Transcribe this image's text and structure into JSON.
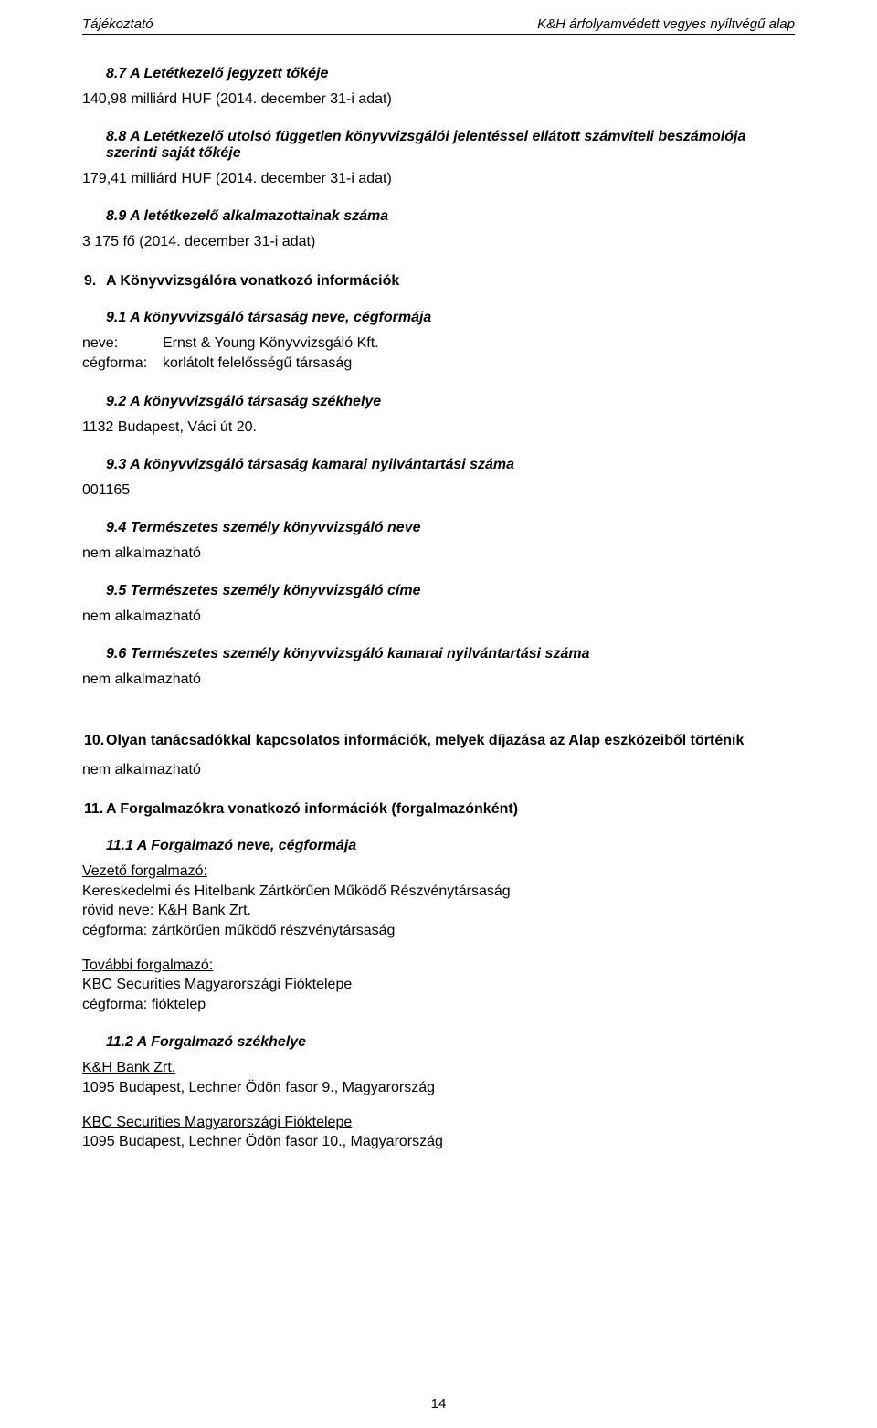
{
  "header": {
    "left": "Tájékoztató",
    "right": "K&H árfolyamvédett vegyes nyíltvégű alap"
  },
  "s8_7": {
    "title": "8.7 A Letétkezelő jegyzett tőkéje",
    "value": "140,98 milliárd HUF (2014. december 31-i adat)"
  },
  "s8_8": {
    "title": "8.8 A Letétkezelő utolsó független könyvvizsgálói jelentéssel ellátott számviteli beszámolója szerinti saját tőkéje",
    "value": "179,41 milliárd HUF (2014. december 31-i adat)"
  },
  "s8_9": {
    "title": "8.9 A letétkezelő alkalmazottainak száma",
    "value": "3 175 fő (2014. december 31-i adat)"
  },
  "s9": {
    "num": "9.",
    "title": "A Könyvvizsgálóra vonatkozó információk"
  },
  "s9_1": {
    "title": "9.1 A könyvvizsgáló társaság neve, cégformája",
    "neve_label": "neve:",
    "neve_value": "Ernst & Young Könyvvizsgáló Kft.",
    "ceg_label": "cégforma:",
    "ceg_value": "korlátolt felelősségű társaság"
  },
  "s9_2": {
    "title": "9.2 A könyvvizsgáló társaság székhelye",
    "value": "1132 Budapest, Váci út 20."
  },
  "s9_3": {
    "title": "9.3 A könyvvizsgáló társaság kamarai nyilvántartási száma",
    "value": "001165"
  },
  "s9_4": {
    "title": "9.4 Természetes személy könyvvizsgáló neve",
    "value": "nem alkalmazható"
  },
  "s9_5": {
    "title": "9.5 Természetes személy könyvvizsgáló címe",
    "value": "nem alkalmazható"
  },
  "s9_6": {
    "title": "9.6 Természetes személy könyvvizsgáló kamarai nyilvántartási száma",
    "value": "nem alkalmazható"
  },
  "s10": {
    "num": "10.",
    "title": "Olyan tanácsadókkal kapcsolatos információk, melyek díjazása az Alap eszközeiből történik",
    "value": "nem alkalmazható"
  },
  "s11": {
    "num": "11.",
    "title": "A Forgalmazókra vonatkozó információk (forgalmazónként)"
  },
  "s11_1": {
    "title": "11.1 A Forgalmazó neve, cégformája",
    "lead_label": "Vezető forgalmazó:",
    "lead_line1": "Kereskedelmi és Hitelbank Zártkörűen Működő Részvénytársaság",
    "lead_line2": "rövid neve: K&H Bank Zrt.",
    "lead_line3": "cégforma: zártkörűen működő részvénytársaság",
    "more_label": "További forgalmazó:",
    "more_line1": "KBC Securities Magyarországi Fióktelepe",
    "more_line2": "cégforma: fióktelep"
  },
  "s11_2": {
    "title": "11.2 A Forgalmazó székhelye",
    "a_label": "K&H Bank Zrt.",
    "a_value": "1095 Budapest, Lechner Ödön fasor 9., Magyarország",
    "b_label": "KBC Securities Magyarországi Fióktelepe",
    "b_value": "1095 Budapest, Lechner Ödön fasor 10., Magyarország"
  },
  "footer": {
    "page": "14"
  }
}
